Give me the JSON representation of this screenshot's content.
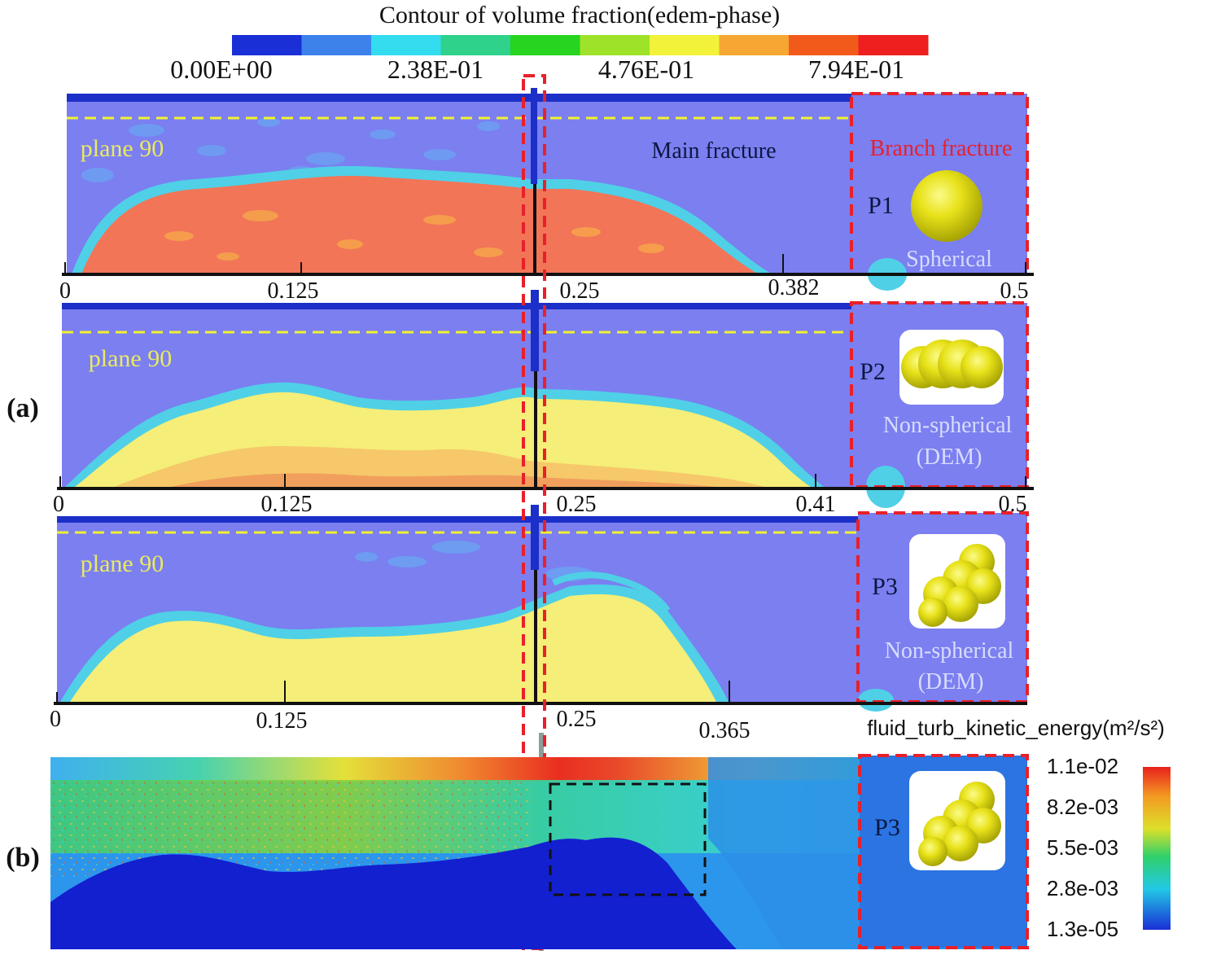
{
  "colorbar_top": {
    "title": "Contour of volume fraction(edem-phase)",
    "tick_labels": [
      "0.00E+00",
      "2.38E-01",
      "4.76E-01",
      "7.94E-01"
    ],
    "colors": [
      "#1a2fd6",
      "#3d82ea",
      "#34dcf0",
      "#2ed28a",
      "#27d41f",
      "#9ee22a",
      "#f2f23a",
      "#f6a632",
      "#f25a1c",
      "#ee1f1f"
    ]
  },
  "panel_labels": {
    "a": "(a)",
    "b": "(b)"
  },
  "panels": [
    {
      "plane_label": "plane 90",
      "main_label": "Main fracture",
      "branch_label": "Branch fracture",
      "particle_id": "P1",
      "particle_type_lines": [
        "Spherical"
      ],
      "axis_ticks": [
        "0",
        "0.125",
        "0.25",
        "0.382",
        "0.5"
      ],
      "fill_color": "#f27558"
    },
    {
      "plane_label": "plane 90",
      "particle_id": "P2",
      "particle_type_lines": [
        "Non-spherical",
        "(DEM)"
      ],
      "axis_ticks": [
        "0",
        "0.125",
        "0.25",
        "0.41",
        "0.5"
      ],
      "fill_color": "#f5ee78"
    },
    {
      "plane_label": "plane 90",
      "particle_id": "P3",
      "particle_type_lines": [
        "Non-spherical",
        "(DEM)"
      ],
      "axis_ticks": [
        "0",
        "0.125",
        "0.25",
        "0.365"
      ],
      "fill_color": "#f5ee78"
    }
  ],
  "panel_b": {
    "colorbar_title": "fluid_turb_kinetic_energy(m²/s²)",
    "colorbar_ticks": [
      "1.1e-02",
      "8.2e-03",
      "5.5e-03",
      "2.8e-03",
      "1.3e-05"
    ],
    "particle_id": "P3"
  },
  "colors": {
    "background_phase": "#7b7ff0",
    "fracture_top": "#1c2fc8",
    "edge": "#4fd0e6",
    "highlight_dash": "#e8202a",
    "plane_line": "#f2f230",
    "plane_text": "#eaea60"
  },
  "icons": [
    "particle-spherical-icon",
    "particle-cluster-p2-icon",
    "particle-cluster-p3-icon"
  ]
}
